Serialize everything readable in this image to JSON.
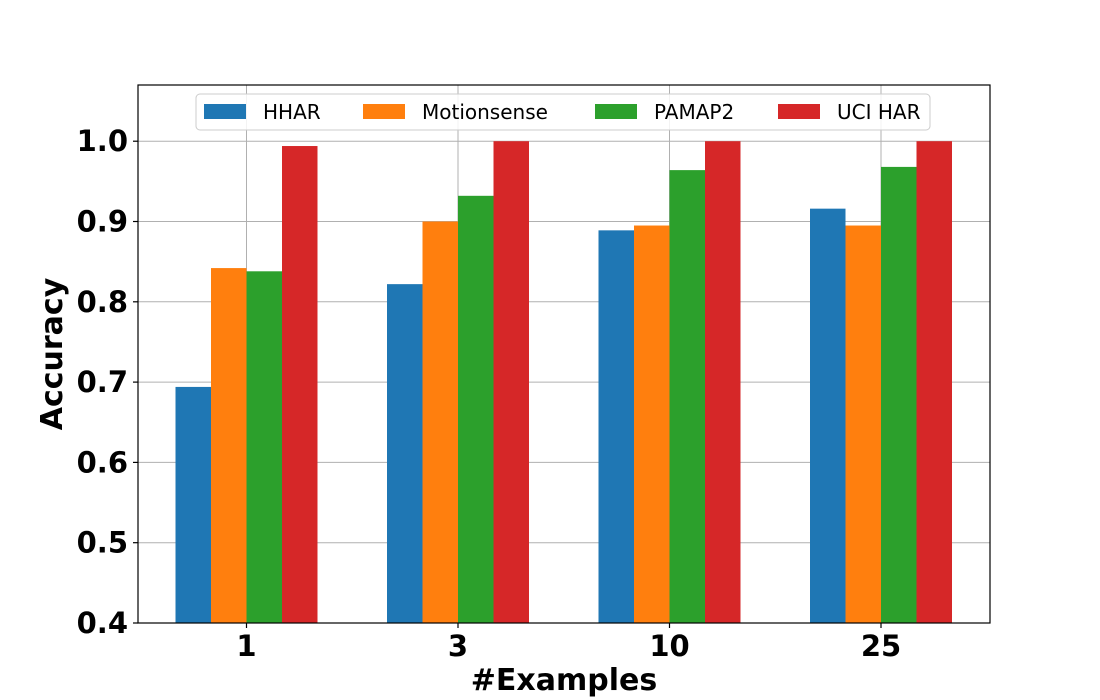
{
  "chart_data": {
    "type": "bar",
    "title": "",
    "xlabel": "#Examples",
    "ylabel": "Accuracy",
    "categories": [
      "1",
      "3",
      "10",
      "25"
    ],
    "series": [
      {
        "name": "HHAR",
        "color": "#1f77b4",
        "values": [
          0.694,
          0.822,
          0.889,
          0.916
        ]
      },
      {
        "name": "Motionsense",
        "color": "#ff7f0e",
        "values": [
          0.842,
          0.9,
          0.895,
          0.895
        ]
      },
      {
        "name": "PAMAP2",
        "color": "#2ca02c",
        "values": [
          0.838,
          0.932,
          0.964,
          0.968
        ]
      },
      {
        "name": "UCI HAR",
        "color": "#d62728",
        "values": [
          0.994,
          1.0,
          1.0,
          1.0
        ]
      }
    ],
    "ylim": [
      0.4,
      1.07
    ],
    "yticks": [
      "0.4",
      "0.5",
      "0.6",
      "0.7",
      "0.8",
      "0.9",
      "1.0"
    ],
    "grid": true,
    "legend_position": "top-center"
  }
}
